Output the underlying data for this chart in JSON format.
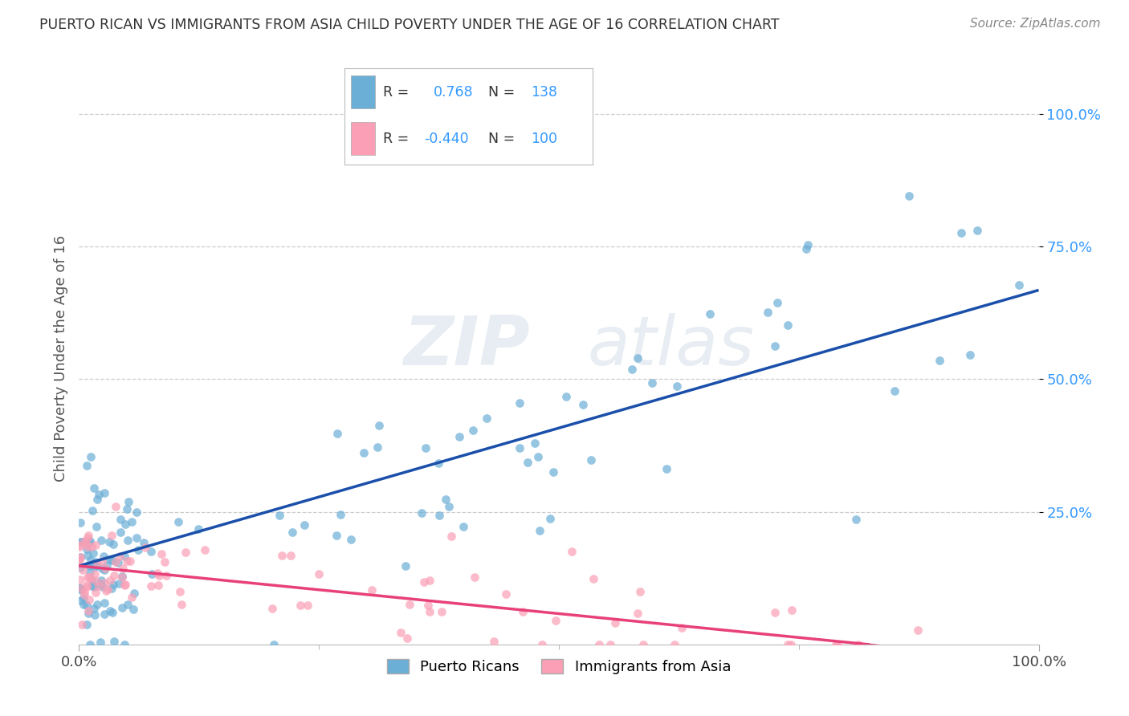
{
  "title": "PUERTO RICAN VS IMMIGRANTS FROM ASIA CHILD POVERTY UNDER THE AGE OF 16 CORRELATION CHART",
  "source": "Source: ZipAtlas.com",
  "ylabel": "Child Poverty Under the Age of 16",
  "legend_labels": [
    "Puerto Ricans",
    "Immigrants from Asia"
  ],
  "blue_color": "#6baed6",
  "pink_color": "#fa9fb5",
  "blue_line_color": "#1a4faa",
  "pink_line_color": "#e8417a",
  "watermark_color": "#c8d8e8",
  "background_color": "#ffffff",
  "grid_color": "#cccccc",
  "ytick_color": "#3399ff",
  "title_color": "#333333",
  "source_color": "#888888",
  "blue_line_intercept": 0.148,
  "blue_line_slope": 0.52,
  "pink_line_intercept": 0.148,
  "pink_line_slope": -0.18,
  "ylim_min": 0.0,
  "ylim_max": 1.08,
  "xlim_min": 0.0,
  "xlim_max": 1.0,
  "yticks": [
    0.25,
    0.5,
    0.75,
    1.0
  ],
  "ytick_labels": [
    "25.0%",
    "50.0%",
    "75.0%",
    "100.0%"
  ],
  "xtick_labels": [
    "0.0%",
    "100.0%"
  ]
}
